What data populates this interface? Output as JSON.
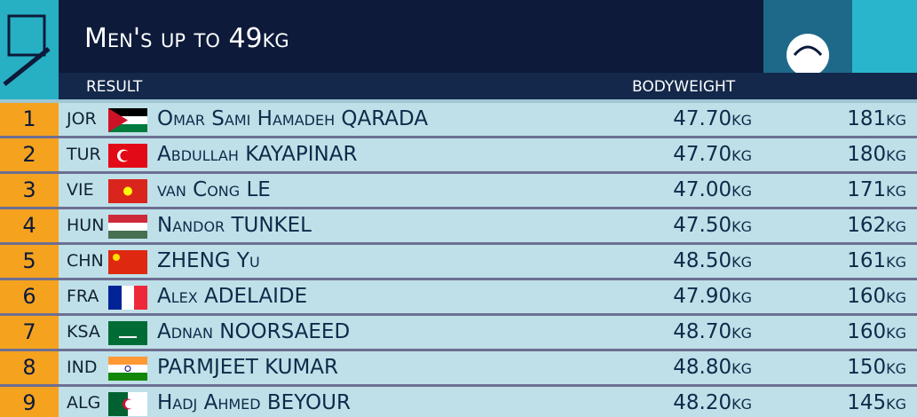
{
  "header": {
    "title": "Men's up to 49kg",
    "result_label": "RESULT",
    "bodyweight_label": "BODYWEIGHT"
  },
  "table": {
    "rows": [
      [
        "1",
        "JOR",
        "Omar Sami Hamadeh QARADA",
        "47.70kg",
        "181kg"
      ],
      [
        "2",
        "TUR",
        "Abdullah KAYAPINAR",
        "47.70kg",
        "180kg"
      ],
      [
        "3",
        "VIE",
        "van Cong LE",
        "47.00kg",
        "171kg"
      ],
      [
        "4",
        "HUN",
        "Nandor TUNKEL",
        "47.50kg",
        "162kg"
      ],
      [
        "5",
        "CHN",
        "ZHENG Yu",
        "48.50kg",
        "161kg"
      ],
      [
        "6",
        "FRA",
        "Alex ADELAIDE",
        "47.90kg",
        "160kg"
      ],
      [
        "7",
        "KSA",
        "Adnan NOORSAEED",
        "48.70kg",
        "160kg"
      ],
      [
        "8",
        "IND",
        "PARMJEET KUMAR",
        "48.80kg",
        "150kg"
      ],
      [
        "9",
        "ALG",
        "Hadj Ahmed BEYOUR",
        "48.20kg",
        "145kg"
      ]
    ]
  }
}
